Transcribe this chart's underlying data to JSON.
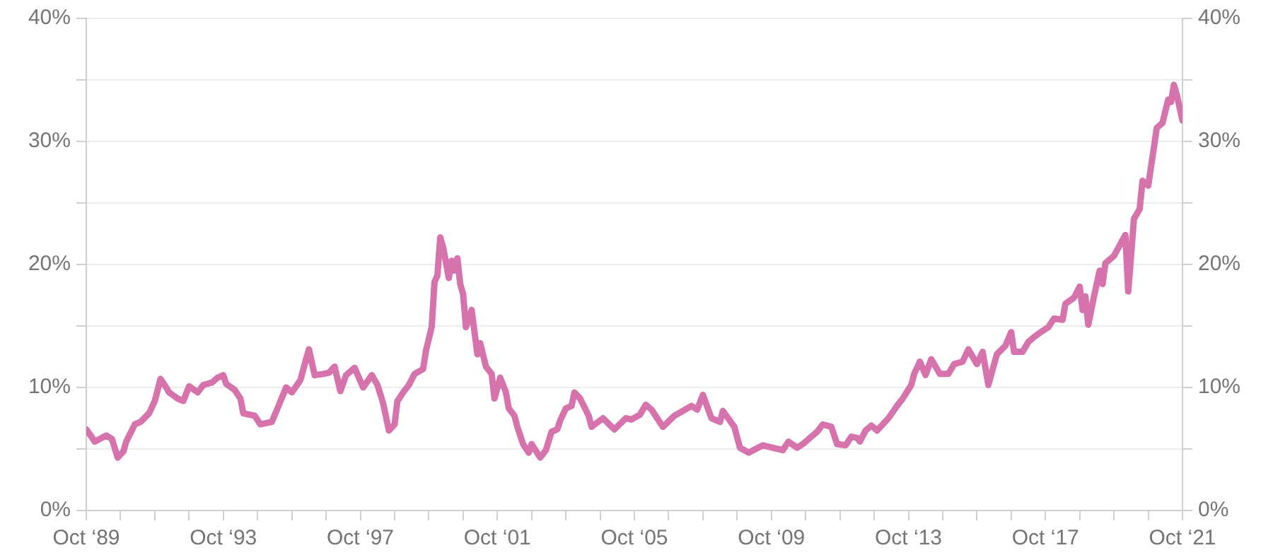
{
  "chart_data": {
    "type": "line",
    "x": [
      "1989-10",
      "1990-01",
      "1990-05",
      "1990-07",
      "1990-09",
      "1990-11",
      "1990-12",
      "1991-03",
      "1991-05",
      "1991-08",
      "1991-10",
      "1991-12",
      "1992-02",
      "1992-03",
      "1992-06",
      "1992-08",
      "1992-10",
      "1993-01",
      "1993-03",
      "1993-06",
      "1993-08",
      "1993-10",
      "1993-11",
      "1994-02",
      "1994-04",
      "1994-05",
      "1994-09",
      "1994-11",
      "1995-03",
      "1995-05",
      "1995-08",
      "1995-10",
      "1996-01",
      "1996-03",
      "1996-04",
      "1996-06",
      "1996-09",
      "1996-11",
      "1997-01",
      "1997-03",
      "1997-05",
      "1997-08",
      "1997-11",
      "1998-02",
      "1998-04",
      "1998-06",
      "1998-08",
      "1998-10",
      "1998-11",
      "1999-01",
      "1999-03",
      "1999-05",
      "1999-08",
      "1999-09",
      "1999-11",
      "1999-12",
      "2000-01",
      "2000-02",
      "2000-03",
      "2000-05",
      "2000-06",
      "2000-07",
      "2000-08",
      "2000-09",
      "2000-10",
      "2000-11",
      "2001-01",
      "2001-03",
      "2001-04",
      "2001-06",
      "2001-08",
      "2001-09",
      "2001-11",
      "2002-01",
      "2002-02",
      "2002-04",
      "2002-05",
      "2002-07",
      "2002-09",
      "2002-10",
      "2003-01",
      "2003-03",
      "2003-05",
      "2003-07",
      "2003-08",
      "2003-10",
      "2003-12",
      "2004-01",
      "2004-03",
      "2004-06",
      "2004-07",
      "2004-11",
      "2005-03",
      "2005-07",
      "2005-09",
      "2005-12",
      "2006-02",
      "2006-04",
      "2006-08",
      "2006-12",
      "2007-03",
      "2007-06",
      "2007-08",
      "2007-10",
      "2008-01",
      "2008-04",
      "2008-05",
      "2008-09",
      "2008-11",
      "2009-02",
      "2009-07",
      "2010-02",
      "2010-04",
      "2010-07",
      "2010-09",
      "2011-02",
      "2011-04",
      "2011-07",
      "2011-09",
      "2011-12",
      "2012-02",
      "2012-04",
      "2012-05",
      "2012-07",
      "2012-09",
      "2012-11",
      "2013-03",
      "2013-06",
      "2013-08",
      "2013-11",
      "2013-12",
      "2014-02",
      "2014-04",
      "2014-06",
      "2014-09",
      "2014-12",
      "2015-02",
      "2015-05",
      "2015-07",
      "2015-10",
      "2015-12",
      "2016-02",
      "2016-05",
      "2016-08",
      "2016-10",
      "2016-11",
      "2017-02",
      "2017-04",
      "2017-06",
      "2017-09",
      "2017-11",
      "2018-01",
      "2018-04",
      "2018-05",
      "2018-08",
      "2018-10",
      "2018-11",
      "2018-12",
      "2019-01",
      "2019-03",
      "2019-05",
      "2019-06",
      "2019-07",
      "2019-10",
      "2020-02",
      "2020-03",
      "2020-05",
      "2020-07",
      "2020-08",
      "2020-10",
      "2021-01",
      "2021-03",
      "2021-05",
      "2021-06",
      "2021-07",
      "2021-08",
      "2021-10"
    ],
    "series": [
      {
        "color": "#d673ac",
        "values": [
          6.6,
          5.6,
          6.1,
          5.8,
          4.3,
          4.8,
          5.6,
          7.0,
          7.2,
          7.9,
          8.9,
          10.7,
          10.0,
          9.6,
          9.1,
          8.9,
          10.1,
          9.6,
          10.2,
          10.4,
          10.8,
          11.0,
          10.3,
          9.8,
          9.1,
          7.9,
          7.7,
          7.0,
          7.2,
          8.3,
          10.0,
          9.6,
          10.6,
          12.3,
          13.1,
          11.0,
          11.1,
          11.2,
          11.7,
          9.7,
          11.0,
          11.6,
          10.0,
          11.0,
          10.2,
          8.7,
          6.5,
          7.0,
          8.9,
          9.6,
          10.2,
          11.1,
          11.5,
          13.0,
          14.9,
          18.6,
          19.1,
          22.2,
          21.4,
          18.9,
          20.3,
          19.5,
          20.5,
          18.4,
          17.6,
          14.9,
          16.3,
          12.7,
          13.6,
          11.7,
          11.1,
          9.1,
          10.8,
          9.6,
          8.3,
          7.7,
          6.8,
          5.4,
          4.7,
          5.4,
          4.3,
          4.9,
          6.4,
          6.6,
          7.3,
          8.3,
          8.5,
          9.6,
          9.1,
          7.7,
          6.8,
          7.5,
          6.6,
          7.5,
          7.4,
          7.8,
          8.6,
          8.2,
          6.8,
          7.7,
          8.1,
          8.5,
          8.2,
          9.4,
          7.5,
          7.2,
          8.1,
          6.8,
          5.1,
          4.7,
          5.3,
          4.9,
          5.6,
          5.1,
          5.4,
          6.4,
          7.0,
          6.8,
          5.4,
          5.3,
          6.0,
          5.9,
          5.6,
          6.5,
          6.9,
          6.5,
          7.5,
          8.5,
          9.1,
          10.2,
          11.1,
          12.1,
          11.0,
          12.3,
          11.1,
          11.1,
          11.9,
          12.1,
          13.1,
          11.9,
          12.9,
          10.2,
          12.7,
          13.4,
          14.5,
          12.9,
          12.9,
          13.7,
          14.1,
          14.6,
          14.9,
          15.6,
          15.5,
          16.8,
          17.3,
          18.2,
          16.3,
          17.4,
          15.1,
          17.4,
          19.5,
          18.4,
          20.1,
          20.7,
          22.4,
          17.8,
          23.7,
          24.5,
          26.8,
          26.4,
          31.1,
          31.5,
          33.4,
          33.2,
          34.6,
          33.8,
          31.7
        ]
      }
    ],
    "xlim": [
      "1989-10",
      "2021-10"
    ],
    "xticks": [
      {
        "value": "1989-10",
        "label": "Oct ‘89"
      },
      {
        "value": "1990-10",
        "label": null
      },
      {
        "value": "1991-10",
        "label": null
      },
      {
        "value": "1992-10",
        "label": null
      },
      {
        "value": "1993-10",
        "label": "Oct ‘93"
      },
      {
        "value": "1994-10",
        "label": null
      },
      {
        "value": "1995-10",
        "label": null
      },
      {
        "value": "1996-10",
        "label": null
      },
      {
        "value": "1997-10",
        "label": "Oct ‘97"
      },
      {
        "value": "1998-10",
        "label": null
      },
      {
        "value": "1999-10",
        "label": null
      },
      {
        "value": "2000-10",
        "label": null
      },
      {
        "value": "2001-10",
        "label": "Oct ‘01"
      },
      {
        "value": "2002-10",
        "label": null
      },
      {
        "value": "2003-10",
        "label": null
      },
      {
        "value": "2004-10",
        "label": null
      },
      {
        "value": "2005-10",
        "label": "Oct ‘05"
      },
      {
        "value": "2006-10",
        "label": null
      },
      {
        "value": "2007-10",
        "label": null
      },
      {
        "value": "2008-10",
        "label": null
      },
      {
        "value": "2009-10",
        "label": "Oct ‘09"
      },
      {
        "value": "2010-10",
        "label": null
      },
      {
        "value": "2011-10",
        "label": null
      },
      {
        "value": "2012-10",
        "label": null
      },
      {
        "value": "2013-10",
        "label": "Oct ‘13"
      },
      {
        "value": "2014-10",
        "label": null
      },
      {
        "value": "2015-10",
        "label": null
      },
      {
        "value": "2016-10",
        "label": null
      },
      {
        "value": "2017-10",
        "label": "Oct ‘17"
      },
      {
        "value": "2018-10",
        "label": null
      },
      {
        "value": "2019-10",
        "label": null
      },
      {
        "value": "2020-10",
        "label": null
      },
      {
        "value": "2021-10",
        "label": "Oct ‘21"
      }
    ],
    "ylim": [
      0,
      40
    ],
    "yticks": [
      {
        "value": 0,
        "label": "0%"
      },
      {
        "value": 5,
        "label": null
      },
      {
        "value": 10,
        "label": "10%"
      },
      {
        "value": 15,
        "label": null
      },
      {
        "value": 20,
        "label": "20%"
      },
      {
        "value": 25,
        "label": null
      },
      {
        "value": 30,
        "label": "30%"
      },
      {
        "value": 35,
        "label": null
      },
      {
        "value": 40,
        "label": "40%"
      }
    ],
    "y2lim": [
      0,
      40
    ],
    "y2ticks": [
      {
        "value": 0,
        "label": "0%"
      },
      {
        "value": 5,
        "label": null
      },
      {
        "value": 10,
        "label": "10%"
      },
      {
        "value": 15,
        "label": null
      },
      {
        "value": 20,
        "label": "20%"
      },
      {
        "value": 25,
        "label": null
      },
      {
        "value": 30,
        "label": "30%"
      },
      {
        "value": 35,
        "label": null
      },
      {
        "value": 40,
        "label": "40%"
      }
    ],
    "grid": "y",
    "legend": false,
    "marker": "none",
    "line_style": "solid"
  }
}
